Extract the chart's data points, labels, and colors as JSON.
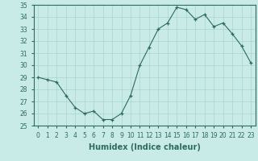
{
  "x": [
    0,
    1,
    2,
    3,
    4,
    5,
    6,
    7,
    8,
    9,
    10,
    11,
    12,
    13,
    14,
    15,
    16,
    17,
    18,
    19,
    20,
    21,
    22,
    23
  ],
  "y": [
    29,
    28.8,
    28.6,
    27.5,
    26.5,
    26,
    26.2,
    25.5,
    25.5,
    26,
    27.5,
    30,
    31.5,
    33,
    33.5,
    34.8,
    34.6,
    33.8,
    34.2,
    33.2,
    33.5,
    32.6,
    31.6,
    30.2
  ],
  "line_color": "#2e6b5e",
  "marker_color": "#2e6b5e",
  "bg_color": "#c8ebe8",
  "grid_color": "#aad4cf",
  "xlabel": "Humidex (Indice chaleur)",
  "xlim": [
    -0.5,
    23.5
  ],
  "ylim": [
    25,
    35
  ],
  "yticks": [
    25,
    26,
    27,
    28,
    29,
    30,
    31,
    32,
    33,
    34,
    35
  ],
  "xticks": [
    0,
    1,
    2,
    3,
    4,
    5,
    6,
    7,
    8,
    9,
    10,
    11,
    12,
    13,
    14,
    15,
    16,
    17,
    18,
    19,
    20,
    21,
    22,
    23
  ],
  "tick_fontsize": 5.5,
  "label_fontsize": 7
}
